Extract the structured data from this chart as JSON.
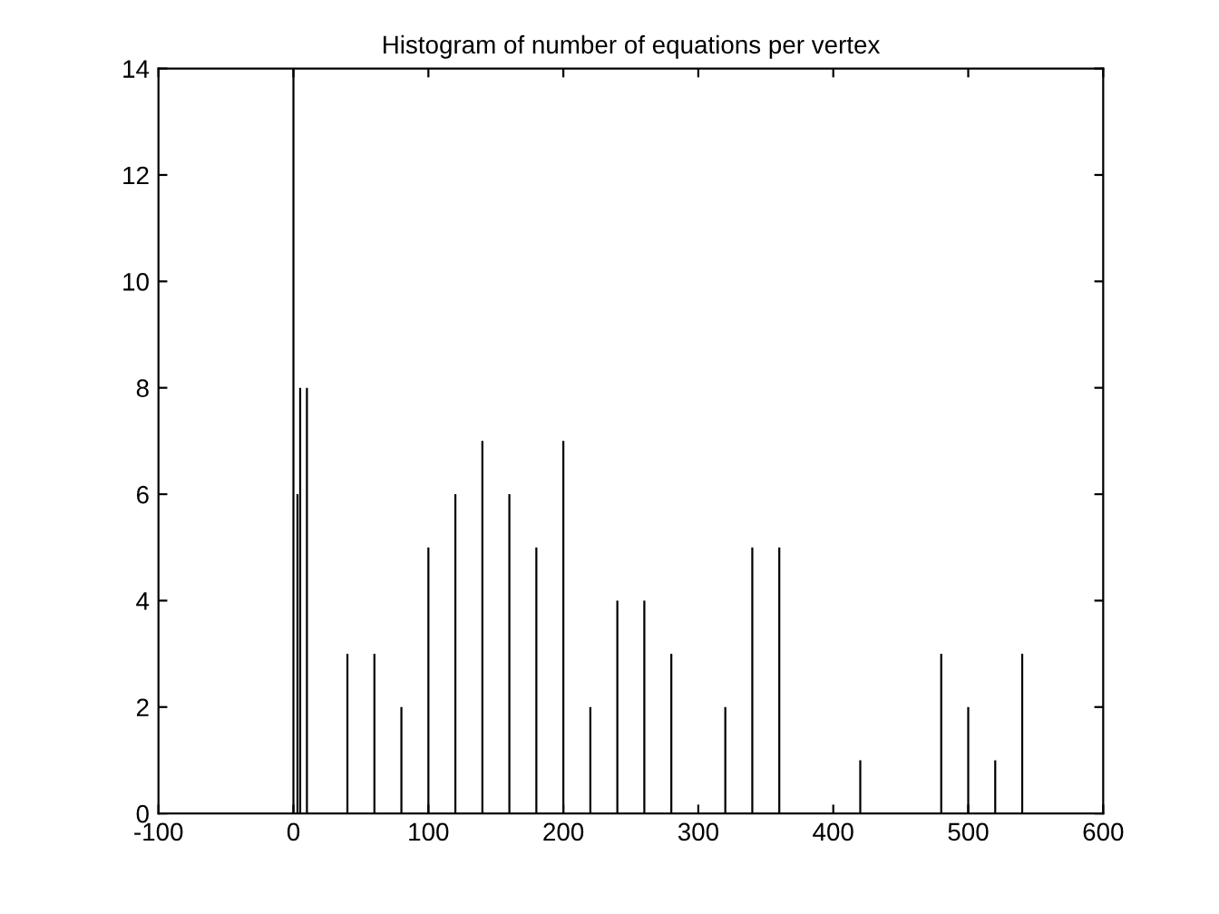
{
  "chart_data": {
    "type": "bar",
    "title": "Histogram of number of equations per vertex",
    "x": [
      0,
      3,
      5,
      10,
      40,
      60,
      80,
      100,
      120,
      140,
      160,
      180,
      200,
      220,
      240,
      260,
      280,
      320,
      340,
      360,
      420,
      480,
      500,
      520,
      540
    ],
    "values": [
      14,
      6,
      8,
      8,
      3,
      3,
      2,
      5,
      6,
      7,
      6,
      5,
      7,
      2,
      4,
      4,
      3,
      2,
      5,
      5,
      1,
      3,
      2,
      1,
      3
    ],
    "color": "#000000",
    "xlim": [
      -100,
      600
    ],
    "xticks": [
      -100,
      0,
      100,
      200,
      300,
      400,
      500,
      600
    ],
    "ylim": [
      0,
      14
    ],
    "yticks": [
      0,
      2,
      4,
      6,
      8,
      10,
      12,
      14
    ],
    "grid": false
  }
}
